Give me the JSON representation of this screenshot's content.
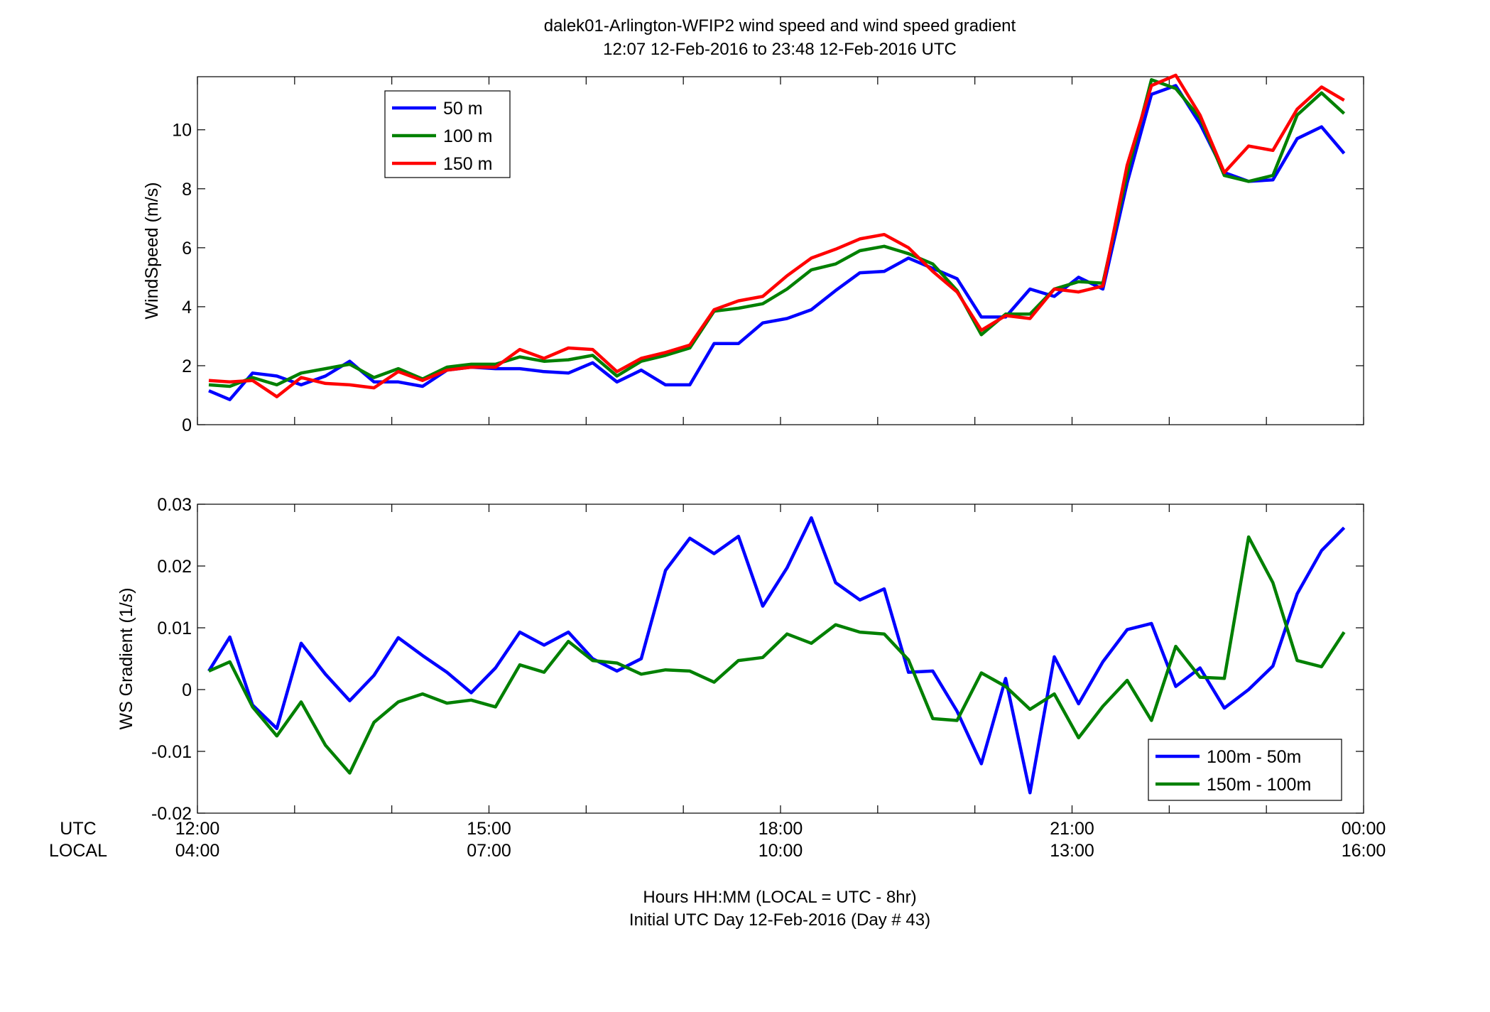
{
  "title_line1": "dalek01-Arlington-WFIP2  wind speed and wind speed gradient",
  "title_line2": "12:07 12-Feb-2016 to 23:48 12-Feb-2016  UTC",
  "utc_label": "UTC",
  "local_label": "LOCAL",
  "utc_ticks": [
    "12:00",
    "15:00",
    "18:00",
    "21:00",
    "00:00"
  ],
  "local_ticks": [
    "04:00",
    "07:00",
    "10:00",
    "13:00",
    "16:00"
  ],
  "xlabel_line1": "Hours HH:MM  (LOCAL = UTC - 8hr)",
  "xlabel_line2": "Initial UTC Day 12-Feb-2016 (Day # 43)",
  "chart_data": [
    {
      "type": "line",
      "ylabel": "WindSpeed (m/s)",
      "xlim": [
        12,
        24
      ],
      "ylim": [
        0,
        11.8
      ],
      "yticks": [
        0,
        2,
        4,
        6,
        8,
        10
      ],
      "grid": false,
      "legend_position": "top-left",
      "x_hours": [
        12.117,
        12.333,
        12.567,
        12.817,
        13.067,
        13.317,
        13.567,
        13.817,
        14.067,
        14.317,
        14.567,
        14.817,
        15.067,
        15.317,
        15.567,
        15.817,
        16.067,
        16.317,
        16.567,
        16.817,
        17.067,
        17.317,
        17.567,
        17.817,
        18.067,
        18.317,
        18.567,
        18.817,
        19.067,
        19.317,
        19.567,
        19.817,
        20.067,
        20.317,
        20.567,
        20.817,
        21.067,
        21.317,
        21.567,
        21.817,
        22.067,
        22.317,
        22.567,
        22.817,
        23.067,
        23.317,
        23.567,
        23.8
      ],
      "series": [
        {
          "name": "50 m",
          "color": "#0000ff",
          "values": [
            1.15,
            0.85,
            1.75,
            1.65,
            1.35,
            1.65,
            2.15,
            1.45,
            1.45,
            1.3,
            1.85,
            1.95,
            1.9,
            1.9,
            1.8,
            1.75,
            2.1,
            1.45,
            1.85,
            1.35,
            1.35,
            2.75,
            2.75,
            3.45,
            3.6,
            3.9,
            4.55,
            5.15,
            5.2,
            5.65,
            5.3,
            4.95,
            3.65,
            3.65,
            4.6,
            4.35,
            5.0,
            4.6,
            8.2,
            11.2,
            11.5,
            10.2,
            8.55,
            8.25,
            8.3,
            9.7,
            10.1,
            9.2
          ]
        },
        {
          "name": "100 m",
          "color": "#008000",
          "values": [
            1.35,
            1.3,
            1.6,
            1.35,
            1.75,
            1.9,
            2.05,
            1.6,
            1.9,
            1.55,
            1.95,
            2.05,
            2.05,
            2.3,
            2.15,
            2.2,
            2.35,
            1.65,
            2.15,
            2.35,
            2.6,
            3.85,
            3.95,
            4.1,
            4.6,
            5.25,
            5.45,
            5.9,
            6.05,
            5.8,
            5.45,
            4.55,
            3.05,
            3.75,
            3.75,
            4.6,
            4.85,
            4.8,
            8.5,
            11.7,
            11.4,
            10.4,
            8.45,
            8.25,
            8.45,
            10.5,
            11.25,
            10.55
          ]
        },
        {
          "name": "150 m",
          "color": "#ff0000",
          "values": [
            1.5,
            1.45,
            1.5,
            0.95,
            1.6,
            1.4,
            1.35,
            1.25,
            1.8,
            1.5,
            1.85,
            1.95,
            1.95,
            2.55,
            2.25,
            2.6,
            2.55,
            1.8,
            2.25,
            2.45,
            2.7,
            3.9,
            4.2,
            4.35,
            5.05,
            5.65,
            5.95,
            6.3,
            6.45,
            6.0,
            5.2,
            4.5,
            3.2,
            3.7,
            3.6,
            4.6,
            4.5,
            4.7,
            8.8,
            11.5,
            11.85,
            10.5,
            8.55,
            9.45,
            9.3,
            10.7,
            11.45,
            11.0
          ]
        }
      ]
    },
    {
      "type": "line",
      "ylabel": "WS Gradient (1/s)",
      "xlim": [
        12,
        24
      ],
      "ylim": [
        -0.02,
        0.03
      ],
      "yticks": [
        -0.02,
        -0.01,
        0,
        0.01,
        0.02,
        0.03
      ],
      "ytick_labels": [
        "-0.02",
        "-0.01",
        "0",
        "0.01",
        "0.02",
        "0.03"
      ],
      "grid": false,
      "legend_position": "bottom-right",
      "x_hours": [
        12.117,
        12.333,
        12.567,
        12.817,
        13.067,
        13.317,
        13.567,
        13.817,
        14.067,
        14.317,
        14.567,
        14.817,
        15.067,
        15.317,
        15.567,
        15.817,
        16.067,
        16.317,
        16.567,
        16.817,
        17.067,
        17.317,
        17.567,
        17.817,
        18.067,
        18.317,
        18.567,
        18.817,
        19.067,
        19.317,
        19.567,
        19.817,
        20.067,
        20.317,
        20.567,
        20.817,
        21.067,
        21.317,
        21.567,
        21.817,
        22.067,
        22.317,
        22.567,
        22.817,
        23.067,
        23.317,
        23.567,
        23.8
      ],
      "series": [
        {
          "name": "100m - 50m",
          "color": "#0000ff",
          "values": [
            0.003,
            0.0085,
            -0.0025,
            -0.0063,
            0.0075,
            0.0025,
            -0.0018,
            0.0023,
            0.0084,
            0.0055,
            0.0028,
            -0.0005,
            0.0035,
            0.0093,
            0.0072,
            0.0093,
            0.005,
            0.003,
            0.005,
            0.0193,
            0.0245,
            0.022,
            0.0248,
            0.0135,
            0.0197,
            0.0278,
            0.0173,
            0.0145,
            0.0163,
            0.0028,
            0.003,
            -0.0035,
            -0.012,
            0.0018,
            -0.0167,
            0.0053,
            -0.0023,
            0.0045,
            0.0097,
            0.0107,
            0.0005,
            0.0035,
            -0.003,
            0.0,
            0.0038,
            0.0155,
            0.0225,
            0.0262
          ]
        },
        {
          "name": "150m - 100m",
          "color": "#008000",
          "values": [
            0.003,
            0.0045,
            -0.0028,
            -0.0075,
            -0.002,
            -0.009,
            -0.0135,
            -0.0053,
            -0.002,
            -0.0007,
            -0.0022,
            -0.0017,
            -0.0028,
            0.004,
            0.0028,
            0.0078,
            0.0047,
            0.0043,
            0.0025,
            0.0032,
            0.003,
            0.0012,
            0.0047,
            0.0052,
            0.009,
            0.0075,
            0.0105,
            0.0093,
            0.009,
            0.0048,
            -0.0047,
            -0.005,
            0.0027,
            0.0005,
            -0.0032,
            -0.0007,
            -0.0078,
            -0.0027,
            0.0015,
            -0.005,
            0.007,
            0.002,
            0.0018,
            0.0247,
            0.0173,
            0.0047,
            0.0037,
            0.0093
          ]
        }
      ]
    }
  ]
}
